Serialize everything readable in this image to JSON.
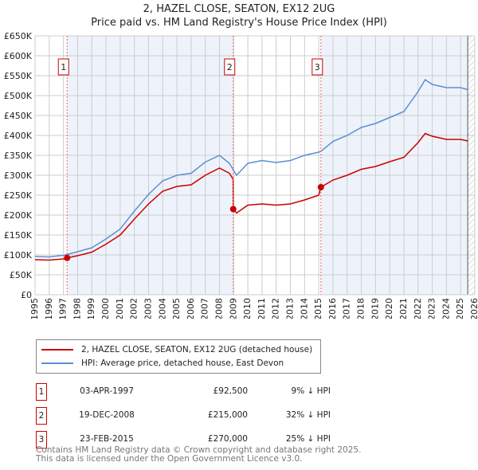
{
  "title": "2, HAZEL CLOSE, SEATON, EX12 2UG",
  "subtitle": "Price paid vs. HM Land Registry's House Price Index (HPI)",
  "chart_data": {
    "type": "line",
    "xlim": [
      1995,
      2026
    ],
    "ylim": [
      0,
      650000
    ],
    "yticks": [
      0,
      50000,
      100000,
      150000,
      200000,
      250000,
      300000,
      350000,
      400000,
      450000,
      500000,
      550000,
      600000,
      650000
    ],
    "ytick_labels": [
      "£0",
      "£50K",
      "£100K",
      "£150K",
      "£200K",
      "£250K",
      "£300K",
      "£350K",
      "£400K",
      "£450K",
      "£500K",
      "£550K",
      "£600K",
      "£650K"
    ],
    "xticks": [
      "1995",
      "1996",
      "1997",
      "1998",
      "1999",
      "2000",
      "2001",
      "2002",
      "2003",
      "2004",
      "2005",
      "2006",
      "2007",
      "2008",
      "2009",
      "2010",
      "2011",
      "2012",
      "2013",
      "2014",
      "2015",
      "2016",
      "2017",
      "2018",
      "2019",
      "2020",
      "2021",
      "2022",
      "2023",
      "2024",
      "2025",
      "2026"
    ],
    "grid": true,
    "series": [
      {
        "name": "2, HAZEL CLOSE, SEATON, EX12 2UG (detached house)",
        "color": "#cc0000",
        "x": [
          1995,
          1996,
          1997,
          1997.26,
          1998,
          1999,
          2000,
          2001,
          2002,
          2003,
          2004,
          2005,
          2006,
          2007,
          2008,
          2008.7,
          2008.96,
          2008.97,
          2009.2,
          2010,
          2011,
          2012,
          2013,
          2014,
          2015,
          2015.15,
          2016,
          2017,
          2018,
          2019,
          2020,
          2021,
          2022,
          2022.5,
          2023,
          2024,
          2025,
          2025.5
        ],
        "y": [
          88000,
          87000,
          90000,
          92500,
          98000,
          107000,
          127000,
          150000,
          190000,
          228000,
          260000,
          272000,
          276000,
          300000,
          318000,
          305000,
          290000,
          215000,
          205000,
          225000,
          228000,
          225000,
          228000,
          238000,
          250000,
          270000,
          288000,
          300000,
          315000,
          322000,
          334000,
          345000,
          382000,
          405000,
          398000,
          390000,
          390000,
          386000
        ]
      },
      {
        "name": "HPI: Average price, detached house, East Devon",
        "color": "#5b8fd4",
        "x": [
          1995,
          1996,
          1997,
          1997.26,
          1998,
          1999,
          2000,
          2001,
          2002,
          2003,
          2004,
          2005,
          2006,
          2007,
          2008,
          2008.7,
          2009.2,
          2010,
          2011,
          2012,
          2013,
          2014,
          2015,
          2015.15,
          2016,
          2017,
          2018,
          2019,
          2020,
          2021,
          2022,
          2022.5,
          2023,
          2024,
          2025,
          2025.5
        ],
        "y": [
          96000,
          95000,
          99000,
          101000,
          108000,
          118000,
          140000,
          165000,
          210000,
          252000,
          286000,
          300000,
          305000,
          333000,
          350000,
          330000,
          300000,
          330000,
          337000,
          332000,
          337000,
          350000,
          358000,
          360000,
          385000,
          400000,
          420000,
          430000,
          445000,
          460000,
          510000,
          540000,
          528000,
          520000,
          520000,
          515000
        ]
      }
    ],
    "sales": [
      {
        "id": "1",
        "x": 1997.26,
        "date": "03-APR-1997",
        "price": 92500,
        "price_label": "£92,500",
        "hpi": "9% ↓ HPI"
      },
      {
        "id": "2",
        "x": 2008.97,
        "date": "19-DEC-2008",
        "price": 215000,
        "price_label": "£215,000",
        "hpi": "32% ↓ HPI"
      },
      {
        "id": "3",
        "x": 2015.15,
        "date": "23-FEB-2015",
        "price": 270000,
        "price_label": "£270,000",
        "hpi": "25% ↓ HPI"
      }
    ],
    "future_start": 2025.5
  },
  "legend": {
    "red": "2, HAZEL CLOSE, SEATON, EX12 2UG (detached house)",
    "blue": "HPI: Average price, detached house, East Devon"
  },
  "footer": {
    "line1": "Contains HM Land Registry data © Crown copyright and database right 2025.",
    "line2": "This data is licensed under the Open Government Licence v3.0."
  }
}
